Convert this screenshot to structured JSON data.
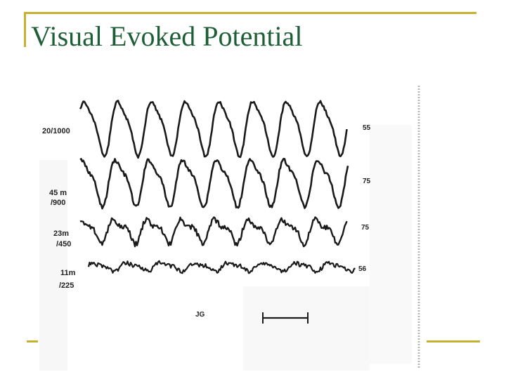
{
  "slide": {
    "title": "Visual Evoked Potential"
  },
  "figure": {
    "traces": [
      {
        "left_label_top": "",
        "left_label_bottom": "20/1000",
        "right_label": "55"
      },
      {
        "left_label_top": "45 m",
        "left_label_bottom": "/900",
        "right_label": "75"
      },
      {
        "left_label_top": "23m",
        "left_label_bottom": "/450",
        "right_label": "75"
      },
      {
        "left_label_top": "11m",
        "left_label_bottom": "/225",
        "right_label": "56"
      }
    ],
    "initials": "JG"
  },
  "colors": {
    "accent": "#c8b030",
    "title": "#1e5e36"
  }
}
